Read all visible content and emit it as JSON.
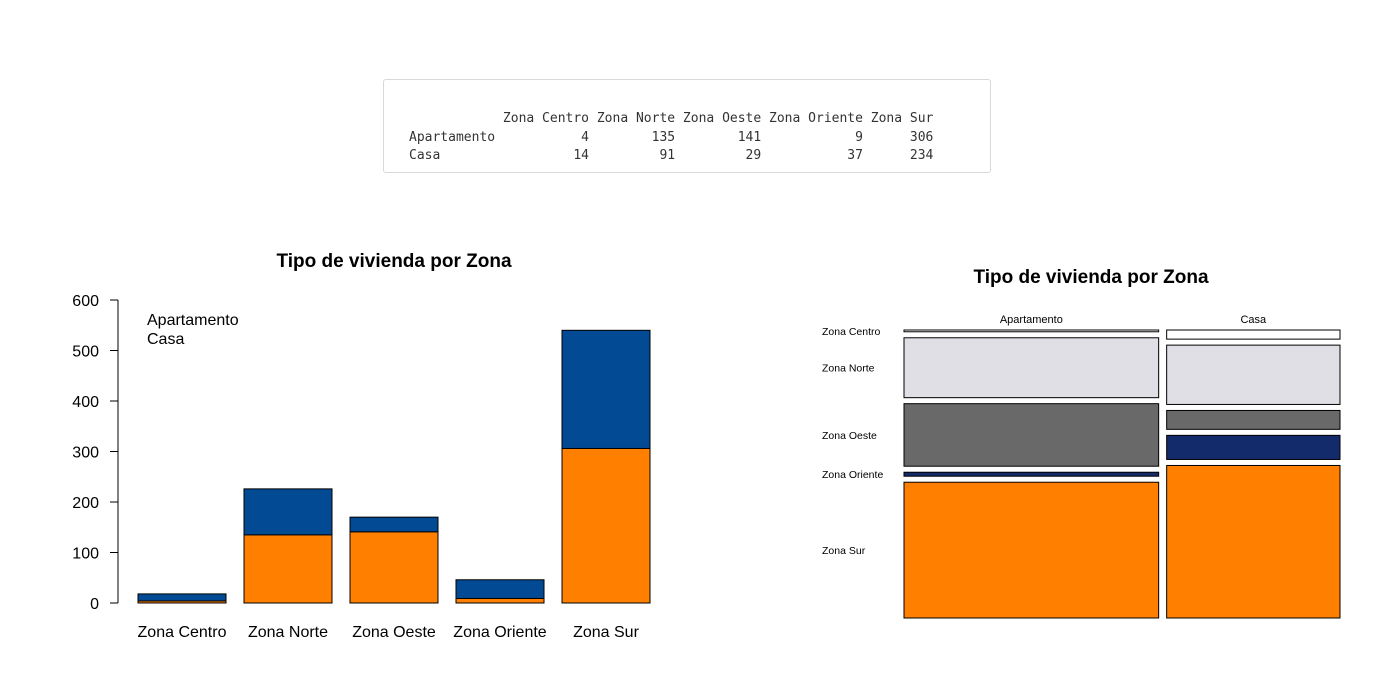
{
  "table": {
    "columns": [
      "Zona Centro",
      "Zona Norte",
      "Zona Oeste",
      "Zona Oriente",
      "Zona Sur"
    ],
    "rows": [
      {
        "name": "Apartamento",
        "values": [
          4,
          135,
          141,
          9,
          306
        ]
      },
      {
        "name": "Casa",
        "values": [
          14,
          91,
          29,
          37,
          234
        ]
      }
    ]
  },
  "chart_data": [
    {
      "type": "bar",
      "stacked": true,
      "title": "Tipo de vivienda por Zona",
      "categories": [
        "Zona Centro",
        "Zona Norte",
        "Zona Oeste",
        "Zona Oriente",
        "Zona Sur"
      ],
      "series": [
        {
          "name": "Apartamento",
          "values": [
            4,
            135,
            141,
            9,
            306
          ],
          "color": "#FF7F00"
        },
        {
          "name": "Casa",
          "values": [
            14,
            91,
            29,
            37,
            234
          ],
          "color": "#034A94"
        }
      ],
      "ylim": [
        0,
        600
      ],
      "yticks": [
        0,
        100,
        200,
        300,
        400,
        500,
        600
      ],
      "legend": {
        "position": "top-left",
        "entries": [
          "Apartamento",
          "Casa"
        ]
      },
      "grid": false
    },
    {
      "type": "mosaic",
      "title": "Tipo de vivienda por Zona",
      "columns": [
        "Apartamento",
        "Casa"
      ],
      "rows": [
        "Zona Centro",
        "Zona Norte",
        "Zona Oeste",
        "Zona Oriente",
        "Zona Sur"
      ],
      "counts": [
        [
          4,
          14
        ],
        [
          135,
          91
        ],
        [
          141,
          29
        ],
        [
          9,
          37
        ],
        [
          306,
          234
        ]
      ],
      "colors": [
        "#FFFFFF",
        "#E0DFE6",
        "#696969",
        "#132B6B",
        "#FF7F00"
      ]
    }
  ]
}
